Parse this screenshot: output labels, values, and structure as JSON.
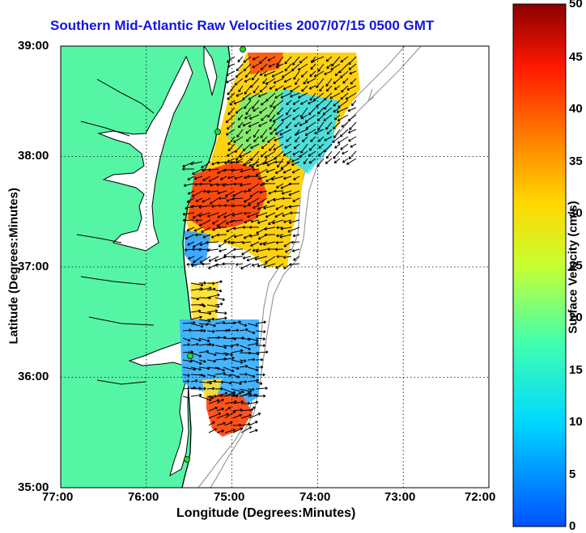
{
  "title": "Southern Mid-Atlantic Raw Velocities 2007/07/15 0500 GMT",
  "x_axis": {
    "label": "Longitude (Degrees:Minutes)",
    "ticks": [
      "77:00",
      "76:00",
      "75:00",
      "74:00",
      "73:00",
      "72:00"
    ]
  },
  "y_axis": {
    "label": "Latitude (Degrees:Minutes)",
    "ticks": [
      "39:00",
      "38:00",
      "37:00",
      "36:00",
      "35:00"
    ]
  },
  "colorbar": {
    "label": "Surface Velocity (cm/s)",
    "ticks": [
      "50",
      "45",
      "40",
      "35",
      "30",
      "25",
      "20",
      "15",
      "10",
      "5",
      "0"
    ],
    "range": [
      0,
      50
    ]
  },
  "colors": {
    "land": "#55f5a5",
    "title": "#1414e0",
    "bathymetry": "#9a9a9a",
    "station": "#22e022"
  },
  "map": {
    "lon_range": [
      -77.0,
      -72.0
    ],
    "lat_range": [
      35.0,
      39.0
    ],
    "grid": "dotted"
  }
}
